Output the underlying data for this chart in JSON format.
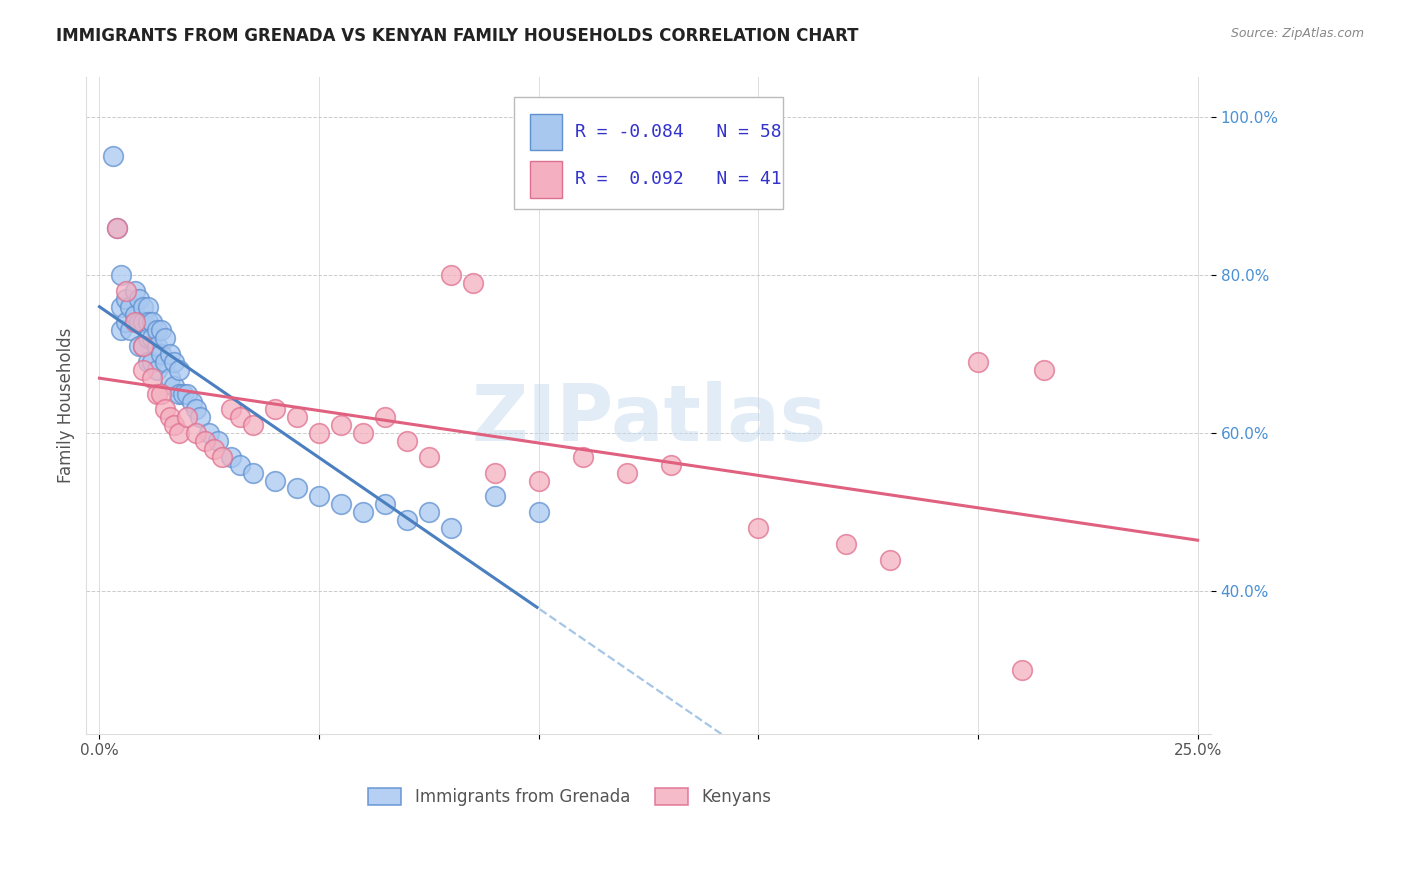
{
  "title": "IMMIGRANTS FROM GRENADA VS KENYAN FAMILY HOUSEHOLDS CORRELATION CHART",
  "source": "Source: ZipAtlas.com",
  "ylabel": "Family Households",
  "xlim": [
    0.0,
    0.25
  ],
  "ylim": [
    0.22,
    1.05
  ],
  "xtick_vals": [
    0.0,
    0.05,
    0.1,
    0.15,
    0.2,
    0.25
  ],
  "xtick_labels": [
    "0.0%",
    "",
    "",
    "",
    "",
    "25.0%"
  ],
  "ytick_vals": [
    0.4,
    0.6,
    0.8,
    1.0
  ],
  "ytick_labels": [
    "40.0%",
    "60.0%",
    "80.0%",
    "100.0%"
  ],
  "color_blue_face": "#a8c8f0",
  "color_blue_edge": "#6090d0",
  "color_pink_face": "#f4b0c0",
  "color_pink_edge": "#e07090",
  "color_blue_line": "#4a7fc0",
  "color_pink_line": "#e06080",
  "color_blue_dash": "#90b8e0",
  "color_ytick": "#4a90d5",
  "color_grid": "#cccccc",
  "watermark": "ZIPatlas",
  "legend_text_color": "#3333cc",
  "legend_r_color": "#cc0033",
  "grenada_x": [
    0.003,
    0.004,
    0.005,
    0.005,
    0.005,
    0.006,
    0.006,
    0.007,
    0.007,
    0.008,
    0.008,
    0.009,
    0.009,
    0.009,
    0.01,
    0.01,
    0.01,
    0.011,
    0.011,
    0.011,
    0.011,
    0.012,
    0.012,
    0.012,
    0.013,
    0.013,
    0.013,
    0.014,
    0.014,
    0.015,
    0.015,
    0.016,
    0.016,
    0.017,
    0.017,
    0.018,
    0.018,
    0.019,
    0.02,
    0.021,
    0.022,
    0.023,
    0.025,
    0.027,
    0.03,
    0.032,
    0.035,
    0.04,
    0.045,
    0.05,
    0.055,
    0.06,
    0.065,
    0.07,
    0.075,
    0.08,
    0.09,
    0.1
  ],
  "grenada_y": [
    0.95,
    0.86,
    0.8,
    0.76,
    0.73,
    0.77,
    0.74,
    0.76,
    0.73,
    0.78,
    0.75,
    0.77,
    0.74,
    0.71,
    0.76,
    0.74,
    0.71,
    0.76,
    0.74,
    0.72,
    0.69,
    0.74,
    0.72,
    0.69,
    0.73,
    0.71,
    0.68,
    0.73,
    0.7,
    0.72,
    0.69,
    0.7,
    0.67,
    0.69,
    0.66,
    0.68,
    0.65,
    0.65,
    0.65,
    0.64,
    0.63,
    0.62,
    0.6,
    0.59,
    0.57,
    0.56,
    0.55,
    0.54,
    0.53,
    0.52,
    0.51,
    0.5,
    0.51,
    0.49,
    0.5,
    0.48,
    0.52,
    0.5
  ],
  "kenyan_x": [
    0.004,
    0.006,
    0.008,
    0.01,
    0.01,
    0.012,
    0.013,
    0.014,
    0.015,
    0.016,
    0.017,
    0.018,
    0.02,
    0.022,
    0.024,
    0.026,
    0.028,
    0.03,
    0.032,
    0.035,
    0.04,
    0.045,
    0.05,
    0.055,
    0.06,
    0.065,
    0.07,
    0.075,
    0.08,
    0.085,
    0.09,
    0.1,
    0.11,
    0.12,
    0.13,
    0.15,
    0.17,
    0.18,
    0.2,
    0.21,
    0.215
  ],
  "kenyan_y": [
    0.86,
    0.78,
    0.74,
    0.71,
    0.68,
    0.67,
    0.65,
    0.65,
    0.63,
    0.62,
    0.61,
    0.6,
    0.62,
    0.6,
    0.59,
    0.58,
    0.57,
    0.63,
    0.62,
    0.61,
    0.63,
    0.62,
    0.6,
    0.61,
    0.6,
    0.62,
    0.59,
    0.57,
    0.8,
    0.79,
    0.55,
    0.54,
    0.57,
    0.55,
    0.56,
    0.48,
    0.46,
    0.44,
    0.69,
    0.3,
    0.68
  ]
}
